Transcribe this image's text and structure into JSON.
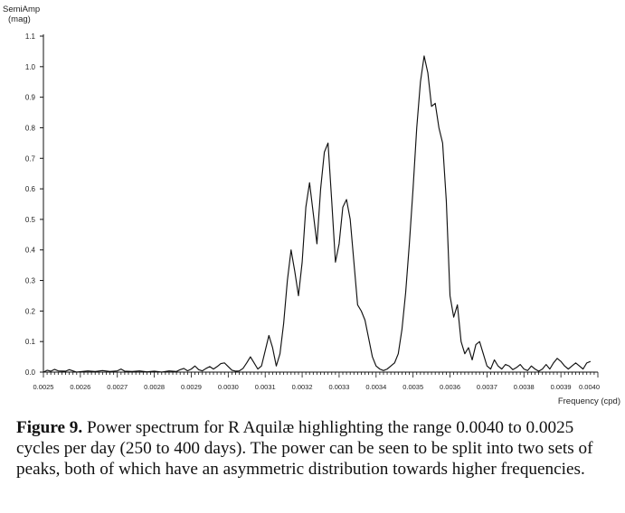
{
  "chart_data": {
    "type": "line",
    "ylabel_lines": [
      "SemiAmp",
      "(mag)"
    ],
    "xlabel": "Frequency (cpd)",
    "xlim": [
      0.0025,
      0.004
    ],
    "ylim": [
      0.0,
      1.1
    ],
    "yticks": [
      {
        "value": 1.1,
        "label": "1.1"
      },
      {
        "value": 1.0,
        "label": "1.0"
      },
      {
        "value": 0.9,
        "label": "0.9"
      },
      {
        "value": 0.8,
        "label": "0.8"
      },
      {
        "value": 0.7,
        "label": "0.7"
      },
      {
        "value": 0.6,
        "label": "0.6"
      },
      {
        "value": 0.5,
        "label": "0.5"
      },
      {
        "value": 0.4,
        "label": "0.4"
      },
      {
        "value": 0.3,
        "label": "0.3"
      },
      {
        "value": 0.2,
        "label": "0.2"
      },
      {
        "value": 0.1,
        "label": "0.1"
      },
      {
        "value": 0.0,
        "label": "0.0"
      }
    ],
    "xticks": [
      {
        "value": 0.0025,
        "label": "0.0025"
      },
      {
        "value": 0.0026,
        "label": "0.0026"
      },
      {
        "value": 0.0027,
        "label": "0.0027"
      },
      {
        "value": 0.0028,
        "label": "0.0028"
      },
      {
        "value": 0.0029,
        "label": "0.0029"
      },
      {
        "value": 0.003,
        "label": "0.0030"
      },
      {
        "value": 0.0031,
        "label": "0.0031"
      },
      {
        "value": 0.0032,
        "label": "0.0032"
      },
      {
        "value": 0.0033,
        "label": "0.0033"
      },
      {
        "value": 0.0034,
        "label": "0.0034"
      },
      {
        "value": 0.0035,
        "label": "0.0035"
      },
      {
        "value": 0.0036,
        "label": "0.0036"
      },
      {
        "value": 0.0037,
        "label": "0.0037"
      },
      {
        "value": 0.0038,
        "label": "0.0038"
      },
      {
        "value": 0.0039,
        "label": "0.0039"
      },
      {
        "value": 0.004,
        "label": "0.0040"
      }
    ],
    "grid": false,
    "series": [
      {
        "points": [
          [
            0.0025,
            0.0
          ],
          [
            0.00251,
            0.006
          ],
          [
            0.00252,
            0.003
          ],
          [
            0.00253,
            0.009
          ],
          [
            0.00254,
            0.004
          ],
          [
            0.00256,
            0.003
          ],
          [
            0.00257,
            0.008
          ],
          [
            0.00258,
            0.004
          ],
          [
            0.00259,
            0.0
          ],
          [
            0.00262,
            0.004
          ],
          [
            0.00264,
            0.002
          ],
          [
            0.00266,
            0.005
          ],
          [
            0.00268,
            0.002
          ],
          [
            0.0027,
            0.004
          ],
          [
            0.00271,
            0.01
          ],
          [
            0.00272,
            0.003
          ],
          [
            0.00274,
            0.002
          ],
          [
            0.00276,
            0.004
          ],
          [
            0.00278,
            0.001
          ],
          [
            0.0028,
            0.003
          ],
          [
            0.00282,
            0.0
          ],
          [
            0.00284,
            0.004
          ],
          [
            0.00286,
            0.002
          ],
          [
            0.00287,
            0.008
          ],
          [
            0.00288,
            0.012
          ],
          [
            0.00289,
            0.004
          ],
          [
            0.0029,
            0.01
          ],
          [
            0.00291,
            0.02
          ],
          [
            0.00292,
            0.008
          ],
          [
            0.00293,
            0.004
          ],
          [
            0.00294,
            0.012
          ],
          [
            0.00295,
            0.018
          ],
          [
            0.00296,
            0.01
          ],
          [
            0.00297,
            0.018
          ],
          [
            0.00298,
            0.028
          ],
          [
            0.00299,
            0.03
          ],
          [
            0.003,
            0.018
          ],
          [
            0.00301,
            0.006
          ],
          [
            0.00302,
            0.003
          ],
          [
            0.00303,
            0.004
          ],
          [
            0.00304,
            0.012
          ],
          [
            0.00305,
            0.03
          ],
          [
            0.00306,
            0.05
          ],
          [
            0.00307,
            0.03
          ],
          [
            0.00308,
            0.01
          ],
          [
            0.00309,
            0.02
          ],
          [
            0.0031,
            0.07
          ],
          [
            0.00311,
            0.12
          ],
          [
            0.00312,
            0.08
          ],
          [
            0.00313,
            0.02
          ],
          [
            0.00314,
            0.06
          ],
          [
            0.00315,
            0.16
          ],
          [
            0.00316,
            0.3
          ],
          [
            0.00317,
            0.4
          ],
          [
            0.00318,
            0.33
          ],
          [
            0.00319,
            0.25
          ],
          [
            0.0032,
            0.36
          ],
          [
            0.00321,
            0.54
          ],
          [
            0.00322,
            0.62
          ],
          [
            0.00323,
            0.52
          ],
          [
            0.00324,
            0.42
          ],
          [
            0.00325,
            0.6
          ],
          [
            0.00326,
            0.72
          ],
          [
            0.00327,
            0.75
          ],
          [
            0.00328,
            0.56
          ],
          [
            0.00329,
            0.36
          ],
          [
            0.0033,
            0.42
          ],
          [
            0.00331,
            0.54
          ],
          [
            0.00332,
            0.565
          ],
          [
            0.00333,
            0.5
          ],
          [
            0.00334,
            0.36
          ],
          [
            0.00335,
            0.22
          ],
          [
            0.00336,
            0.2
          ],
          [
            0.00337,
            0.17
          ],
          [
            0.00338,
            0.11
          ],
          [
            0.00339,
            0.05
          ],
          [
            0.0034,
            0.02
          ],
          [
            0.00341,
            0.01
          ],
          [
            0.00342,
            0.005
          ],
          [
            0.00343,
            0.01
          ],
          [
            0.00344,
            0.02
          ],
          [
            0.00345,
            0.03
          ],
          [
            0.00346,
            0.06
          ],
          [
            0.00347,
            0.14
          ],
          [
            0.00348,
            0.26
          ],
          [
            0.00349,
            0.42
          ],
          [
            0.0035,
            0.6
          ],
          [
            0.00351,
            0.8
          ],
          [
            0.00352,
            0.95
          ],
          [
            0.00353,
            1.035
          ],
          [
            0.00354,
            0.98
          ],
          [
            0.00355,
            0.87
          ],
          [
            0.00356,
            0.88
          ],
          [
            0.00357,
            0.8
          ],
          [
            0.00358,
            0.75
          ],
          [
            0.00359,
            0.56
          ],
          [
            0.0036,
            0.25
          ],
          [
            0.00361,
            0.18
          ],
          [
            0.00362,
            0.22
          ],
          [
            0.00363,
            0.1
          ],
          [
            0.00364,
            0.06
          ],
          [
            0.00365,
            0.08
          ],
          [
            0.00366,
            0.04
          ],
          [
            0.00367,
            0.09
          ],
          [
            0.00368,
            0.1
          ],
          [
            0.00369,
            0.06
          ],
          [
            0.0037,
            0.02
          ],
          [
            0.00371,
            0.01
          ],
          [
            0.00372,
            0.04
          ],
          [
            0.00373,
            0.02
          ],
          [
            0.00374,
            0.01
          ],
          [
            0.00375,
            0.025
          ],
          [
            0.00376,
            0.02
          ],
          [
            0.00377,
            0.008
          ],
          [
            0.00378,
            0.015
          ],
          [
            0.00379,
            0.025
          ],
          [
            0.0038,
            0.01
          ],
          [
            0.00381,
            0.005
          ],
          [
            0.00382,
            0.02
          ],
          [
            0.00383,
            0.01
          ],
          [
            0.00384,
            0.003
          ],
          [
            0.00385,
            0.01
          ],
          [
            0.00386,
            0.025
          ],
          [
            0.00387,
            0.01
          ],
          [
            0.00388,
            0.03
          ],
          [
            0.00389,
            0.045
          ],
          [
            0.0039,
            0.035
          ],
          [
            0.00391,
            0.02
          ],
          [
            0.00392,
            0.01
          ],
          [
            0.00393,
            0.02
          ],
          [
            0.00394,
            0.03
          ],
          [
            0.00395,
            0.02
          ],
          [
            0.00396,
            0.01
          ],
          [
            0.00397,
            0.03
          ],
          [
            0.00398,
            0.035
          ]
        ]
      }
    ]
  },
  "caption": {
    "label": "Figure 9.",
    "text": " Power spectrum for R Aquilæ highlighting the range 0.0040 to 0.0025 cycles per day (250 to 400 days). The power can be seen to be split into two sets of peaks, both of which have an asymmetric distribution towards higher frequencies."
  }
}
